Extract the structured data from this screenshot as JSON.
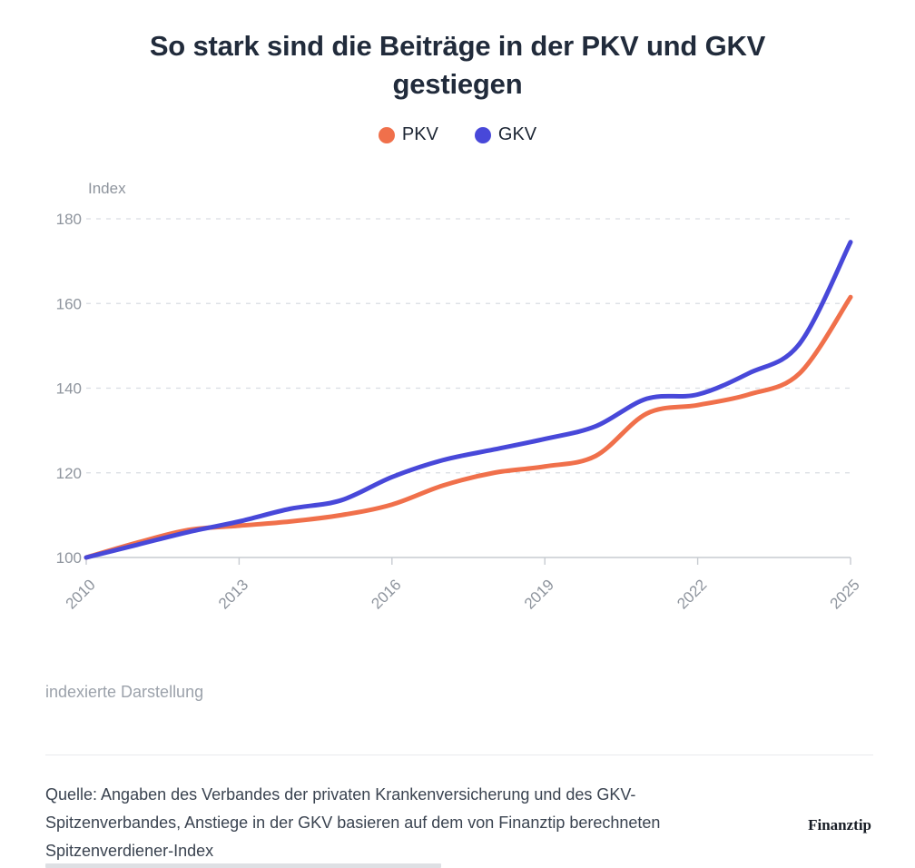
{
  "header": {
    "title_line1": "So stark sind die Beiträge in der PKV und GKV",
    "title_line2": "gestiegen"
  },
  "legend": [
    {
      "label": "PKV",
      "color": "#F0704B"
    },
    {
      "label": "GKV",
      "color": "#4848D9"
    }
  ],
  "chart_data": {
    "type": "line",
    "title": "So stark sind die Beiträge in der PKV und GKV gestiegen",
    "ylabel": "Index",
    "xlabel": "",
    "x": [
      2010,
      2011,
      2012,
      2013,
      2014,
      2015,
      2016,
      2017,
      2018,
      2019,
      2020,
      2021,
      2022,
      2023,
      2024,
      2025
    ],
    "series": [
      {
        "name": "PKV",
        "color": "#F0704B",
        "values": [
          100,
          103.5,
          106.5,
          107.5,
          108.5,
          110,
          112.5,
          117,
          120,
          121.5,
          124,
          134,
          136,
          138.5,
          143.5,
          161.5
        ]
      },
      {
        "name": "GKV",
        "color": "#4848D9",
        "values": [
          100,
          103,
          106,
          108.5,
          111.5,
          113.5,
          119,
          123,
          125.5,
          128,
          131,
          137.5,
          138.5,
          143.5,
          150.5,
          174.5
        ]
      }
    ],
    "xlim": [
      2010,
      2025
    ],
    "ylim": [
      100,
      180
    ],
    "x_ticks": [
      2010,
      2013,
      2016,
      2019,
      2022,
      2025
    ],
    "y_ticks": [
      100,
      120,
      140,
      160,
      180
    ],
    "grid": "horizontal-dashed",
    "legend_position": "top-center"
  },
  "footer": {
    "note": "indexierte Darstellung",
    "source_lines": [
      "Quelle: Angaben des Verbandes der privaten Krankenversicherung und des GKV-",
      "Spitzenverbandes, Anstiege in der GKV basieren auf dem von Finanztip berechneten",
      "Spitzenverdiener-Index"
    ],
    "brand": "Finanztip"
  },
  "colors": {
    "pkv": "#F0704B",
    "gkv": "#4848D9",
    "gridline": "#D9DDE3",
    "axis": "#C7CBD1",
    "tick_text": "#8E949D",
    "title_text": "#212B3B"
  }
}
